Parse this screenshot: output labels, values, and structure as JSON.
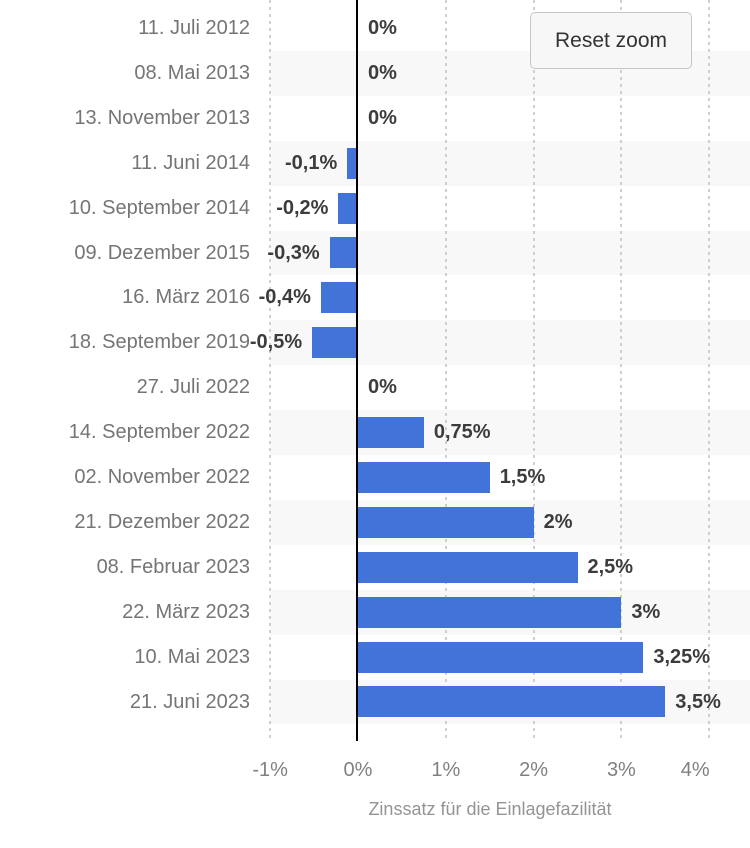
{
  "chart_data": {
    "type": "bar",
    "orientation": "horizontal",
    "title": "",
    "xlabel": "Zinssatz für die Einlagefazilität",
    "ylabel": "",
    "categories": [
      "11. Juli 2012",
      "08. Mai 2013",
      "13. November 2013",
      "11. Juni 2014",
      "10. September 2014",
      "09. Dezember 2015",
      "16. März 2016",
      "18. September 2019",
      "27. Juli 2022",
      "14. September 2022",
      "02. November 2022",
      "21. Dezember 2022",
      "08. Februar 2023",
      "22. März 2023",
      "10. Mai 2023",
      "21. Juni 2023"
    ],
    "values": [
      0,
      0,
      0,
      -0.1,
      -0.2,
      -0.3,
      -0.4,
      -0.5,
      0,
      0.75,
      1.5,
      2,
      2.5,
      3,
      3.25,
      3.5
    ],
    "value_labels": [
      "0%",
      "0%",
      "0%",
      "-0,1%",
      "-0,2%",
      "-0,3%",
      "-0,4%",
      "-0,5%",
      "0%",
      "0,75%",
      "1,5%",
      "2%",
      "2,5%",
      "3%",
      "3,25%",
      "3,5%"
    ],
    "x_ticks": [
      {
        "value": -1,
        "label": "-1%"
      },
      {
        "value": 0,
        "label": "0%"
      },
      {
        "value": 1,
        "label": "1%"
      },
      {
        "value": 2,
        "label": "2%"
      },
      {
        "value": 3,
        "label": "3%"
      },
      {
        "value": 4,
        "label": "4%"
      }
    ],
    "xlim": [
      -1,
      4.45
    ],
    "grid": true,
    "grid_style": "dotted-vertical",
    "alternating_row_bands": true,
    "legend": false
  },
  "controls": {
    "reset_zoom_label": "Reset zoom"
  },
  "colors": {
    "bar": "#4273d8",
    "row_band": "#f8f8f8",
    "gridline": "#cfcfcf",
    "zero_line": "#000000",
    "category_text": "#757575",
    "value_text": "#3c3c3c",
    "tick_text": "#808080",
    "axis_title_text": "#949494",
    "background": "#ffffff"
  }
}
